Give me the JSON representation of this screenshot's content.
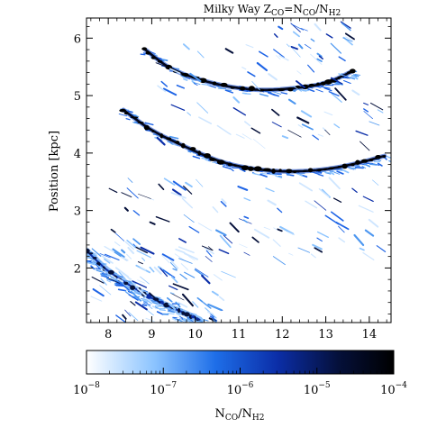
{
  "chart_data": {
    "type": "heatmap",
    "title": {
      "prefix": "Milky Way Z",
      "sub1": "CO",
      "eq": "=N",
      "sub2": "CO",
      "slash": "/N",
      "sub3": "H2"
    },
    "ylabel": "Position [kpc]",
    "xlim": [
      7.5,
      14.5
    ],
    "ylim": [
      1.05,
      6.35
    ],
    "x_ticks": [
      "8",
      "9",
      "10",
      "11",
      "12",
      "13",
      "14"
    ],
    "x_tick_values": [
      8,
      9,
      10,
      11,
      12,
      13,
      14
    ],
    "y_ticks": [
      "2",
      "3",
      "4",
      "5",
      "6"
    ],
    "y_tick_values": [
      2,
      3,
      4,
      5,
      6
    ],
    "colorbar": {
      "scale": "log",
      "range_exp": [
        -8,
        -4
      ],
      "tick_labels": [
        {
          "base": "10",
          "exp": "−8",
          "value_exp": -8
        },
        {
          "base": "10",
          "exp": "−7",
          "value_exp": -7
        },
        {
          "base": "10",
          "exp": "−6",
          "value_exp": -6
        },
        {
          "base": "10",
          "exp": "−5",
          "value_exp": -5
        },
        {
          "base": "10",
          "exp": "−4",
          "value_exp": -4
        }
      ],
      "label": {
        "main": "N",
        "sub1": "CO",
        "slash": "/N",
        "sub2": "H2"
      },
      "colors": [
        "#ffffff",
        "#6fb6ff",
        "#1e64e6",
        "#0a2a9a",
        "#040a30",
        "#000000"
      ]
    },
    "arcs": [
      {
        "name": "arc-upper",
        "points": [
          [
            8.85,
            5.8
          ],
          [
            9.5,
            5.45
          ],
          [
            10.5,
            5.2
          ],
          [
            11.5,
            5.1
          ],
          [
            12.5,
            5.15
          ],
          [
            13.1,
            5.25
          ],
          [
            13.6,
            5.42
          ]
        ],
        "level": "dense"
      },
      {
        "name": "arc-middle",
        "points": [
          [
            8.35,
            4.75
          ],
          [
            9.0,
            4.4
          ],
          [
            9.8,
            4.1
          ],
          [
            10.6,
            3.85
          ],
          [
            11.4,
            3.72
          ],
          [
            12.2,
            3.68
          ],
          [
            13.0,
            3.72
          ],
          [
            13.7,
            3.82
          ],
          [
            14.35,
            3.95
          ]
        ],
        "level": "dense"
      },
      {
        "name": "arc-lower-left",
        "points": [
          [
            7.5,
            2.3
          ],
          [
            8.0,
            1.95
          ],
          [
            8.6,
            1.65
          ],
          [
            9.2,
            1.4
          ],
          [
            9.8,
            1.2
          ],
          [
            10.1,
            1.1
          ]
        ],
        "level": "medium"
      }
    ]
  }
}
